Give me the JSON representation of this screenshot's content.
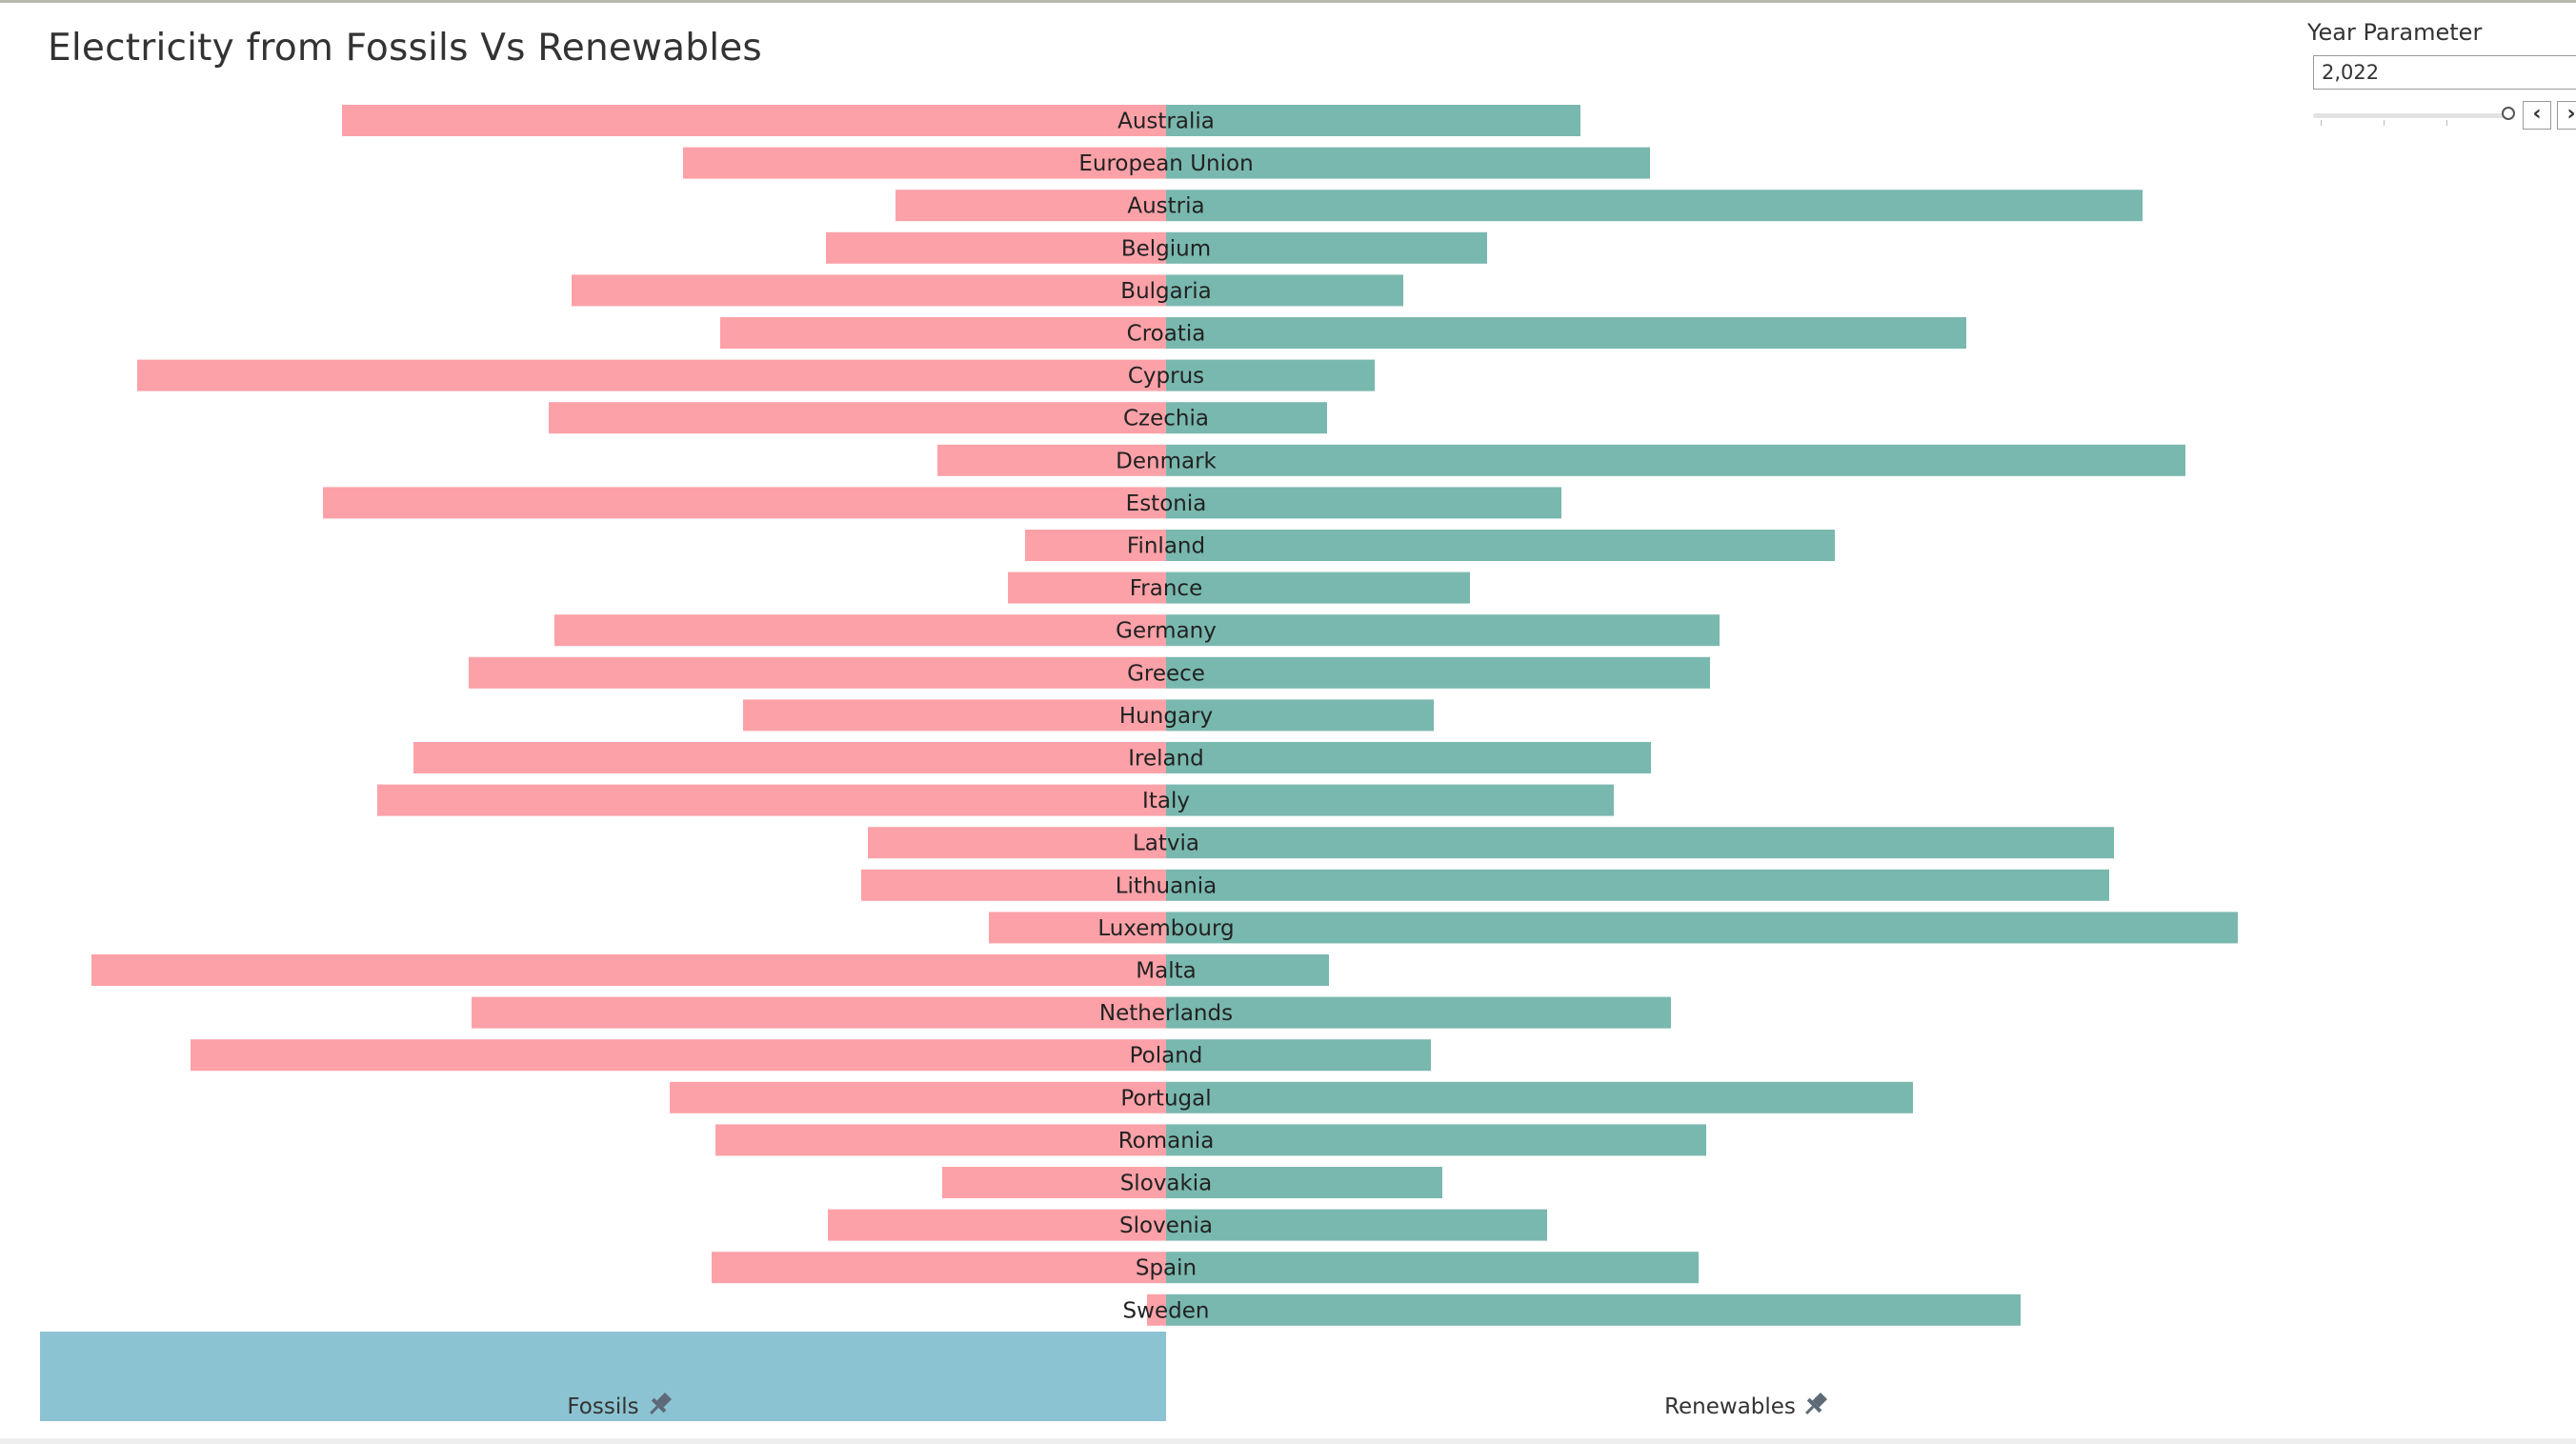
{
  "page": {
    "title": "Electricity from Fossils Vs Renewables"
  },
  "parameter": {
    "label": "Year Parameter",
    "value": "2,022",
    "prev_icon": "chevron-left-icon",
    "next_icon": "chevron-right-icon"
  },
  "colors": {
    "fossils": "#fca1a8",
    "renewables": "#79b8ae",
    "header_highlight": "#8cc3d2"
  },
  "chart_data": {
    "type": "bar",
    "layout": "diverging",
    "title": "Electricity from Fossils Vs Renewables",
    "categories": [
      "Australia",
      "European Union",
      "Austria",
      "Belgium",
      "Bulgaria",
      "Croatia",
      "Cyprus",
      "Czechia",
      "Denmark",
      "Estonia",
      "Finland",
      "France",
      "Germany",
      "Greece",
      "Hungary",
      "Ireland",
      "Italy",
      "Latvia",
      "Lithuania",
      "Luxembourg",
      "Malta",
      "Netherlands",
      "Poland",
      "Portugal",
      "Romania",
      "Slovakia",
      "Slovenia",
      "Spain",
      "Sweden"
    ],
    "series": [
      {
        "name": "Fossils",
        "direction": "left",
        "values": [
          865,
          507,
          284,
          357,
          624,
          468,
          1080,
          648,
          240,
          885,
          148,
          166,
          642,
          732,
          444,
          790,
          828,
          313,
          320,
          186,
          1128,
          729,
          1024,
          521,
          473,
          235,
          355,
          477,
          20
        ]
      },
      {
        "name": "Renewables",
        "direction": "right",
        "values": [
          435,
          508,
          1025,
          337,
          249,
          840,
          219,
          169,
          1070,
          415,
          702,
          319,
          581,
          571,
          281,
          509,
          470,
          995,
          990,
          1125,
          171,
          530,
          278,
          784,
          567,
          290,
          400,
          559,
          897
        ]
      }
    ],
    "axis_labels": {
      "left": "Fossils",
      "right": "Renewables"
    },
    "legend": "none",
    "grid": false
  }
}
